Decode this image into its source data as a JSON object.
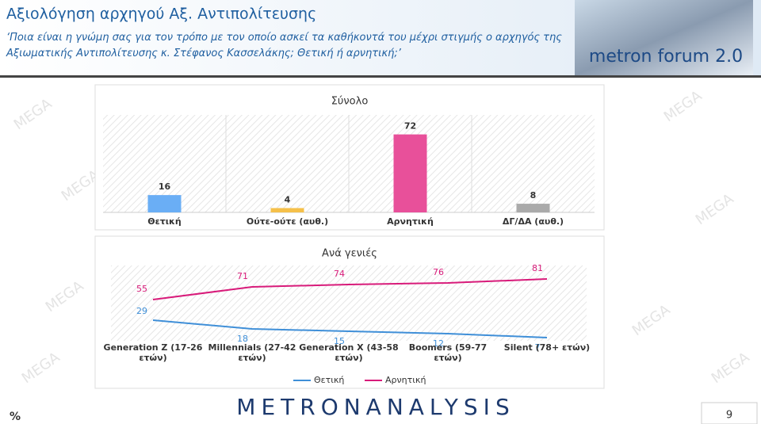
{
  "header": {
    "title": "Αξιολόγηση αρχηγού Αξ. Αντιπολίτευσης",
    "subtitle": "‘Ποια είναι η γνώμη σας για τον τρόπο με τον οποίο ασκεί τα καθήκοντά του μέχρι στιγμής ο αρχηγός της Αξιωματικής Αντιπολίτευσης κ. Στέφανος Κασσελάκης; Θετική ή αρνητική;’",
    "badge": "metron forum 2.0"
  },
  "watermark": "MEGA",
  "chart_data": [
    {
      "type": "bar",
      "title": "Σύνολο",
      "categories": [
        "Θετική",
        "Ούτε-ούτε (αυθ.)",
        "Αρνητική",
        "ΔΓ/ΔΑ (αυθ.)"
      ],
      "values": [
        16,
        4,
        72,
        8
      ],
      "colors": [
        "#6aaef5",
        "#f5c04a",
        "#e8509a",
        "#aaaaaa"
      ]
    },
    {
      "type": "line",
      "title": "Ανά γενιές",
      "categories": [
        "Generation Z (17-26 ετών)",
        "Millennials (27-42 ετών)",
        "Generation X (43-58 ετών)",
        "Boomers (59-77 ετών)",
        "Silent (78+ ετών)"
      ],
      "series": [
        {
          "name": "Θετική",
          "color": "#3f8fd8",
          "values": [
            29,
            18,
            15,
            12,
            7
          ]
        },
        {
          "name": "Αρνητική",
          "color": "#d81b7a",
          "values": [
            55,
            71,
            74,
            76,
            81
          ]
        }
      ],
      "legend": "bottom"
    }
  ],
  "footer": {
    "logo": "METRONANALYSIS",
    "unit": "%",
    "page": "9"
  }
}
